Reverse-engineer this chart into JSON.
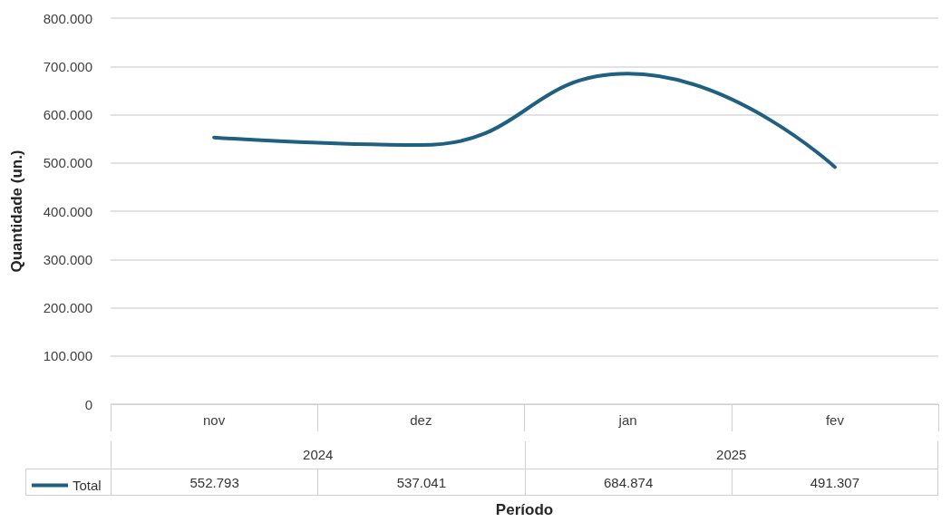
{
  "chart_data": {
    "type": "line",
    "xlabel": "Período",
    "ylabel": "Quantidade (un.)",
    "categories": [
      "nov",
      "dez",
      "jan",
      "fev"
    ],
    "annotations": [
      "2024",
      "2025"
    ],
    "series": [
      {
        "name": "Total",
        "color": "#1f5f7f",
        "values": [
          552793,
          537041,
          684874,
          491307
        ],
        "value_labels": [
          "552.793",
          "537.041",
          "684.874",
          "491.307"
        ]
      }
    ],
    "ylim": [
      0,
      800000
    ],
    "yticks": [
      0,
      {
        "value": 100000,
        "label": "100.000"
      },
      {
        "value": 200000,
        "label": "200.000"
      },
      {
        "value": 300000,
        "label": "300.000"
      },
      {
        "value": 400000,
        "label": "400.000"
      },
      {
        "value": 500000,
        "label": "500.000"
      },
      {
        "value": 600000,
        "label": "600.000"
      },
      {
        "value": 700000,
        "label": "700.000"
      },
      {
        "value": 800000,
        "label": "800.000"
      }
    ],
    "grid": "y",
    "legend": "bottom",
    "marker": "none",
    "line_style": "solid"
  }
}
